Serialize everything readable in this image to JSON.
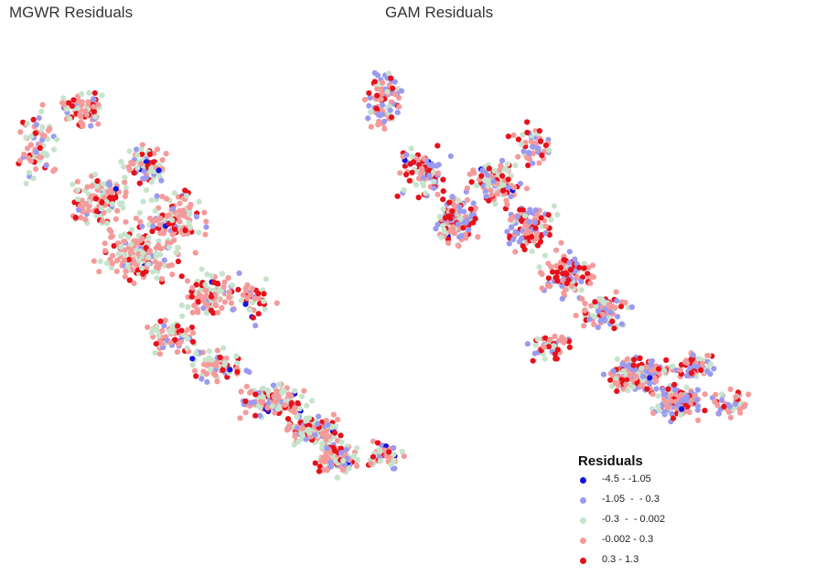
{
  "panels": [
    {
      "title": "MGWR Residuals"
    },
    {
      "title": "GAM Residuals"
    }
  ],
  "legend": {
    "title": "Residuals",
    "items": [
      {
        "label": "-4.5 - -1.05",
        "color": "#1515e0"
      },
      {
        "label": "-1.05  -  - 0.3",
        "color": "#9a9af0"
      },
      {
        "label": "-0.3  -  - 0.002",
        "color": "#c6e3cc"
      },
      {
        "label": "-0.002 - 0.3",
        "color": "#f59a9a"
      },
      {
        "label": "0.3 - 1.3",
        "color": "#e8101a"
      }
    ]
  }
}
